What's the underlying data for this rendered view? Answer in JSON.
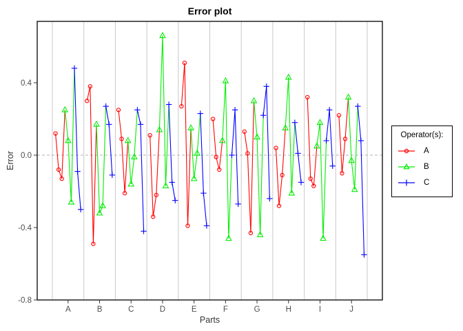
{
  "chart_data": {
    "type": "line",
    "title": "Error plot",
    "xlabel": "Parts",
    "ylabel": "Error",
    "y_ticks": [
      "0.4",
      "0.0",
      "-0.4",
      "-0.8"
    ],
    "y_tick_values": [
      0.4,
      0.0,
      -0.4,
      -0.8
    ],
    "ylim": [
      -0.8,
      0.74
    ],
    "zero_line": 0.0,
    "grid": "vertical-part-separators",
    "parts": [
      "A",
      "B",
      "C",
      "D",
      "E",
      "F",
      "G",
      "H",
      "I",
      "J"
    ],
    "trials_per_operator": 3,
    "operators": [
      {
        "name": "A",
        "color": "#ff0000",
        "marker": "circle"
      },
      {
        "name": "B",
        "color": "#00ee00",
        "marker": "triangle"
      },
      {
        "name": "C",
        "color": "#0000ff",
        "marker": "plus"
      }
    ],
    "errors_by_part": [
      {
        "part": "A",
        "A": [
          0.12,
          -0.08,
          -0.13
        ],
        "B": [
          0.25,
          0.08,
          -0.26
        ],
        "C": [
          0.48,
          -0.09,
          -0.3
        ]
      },
      {
        "part": "B",
        "A": [
          0.3,
          0.38,
          -0.49
        ],
        "B": [
          0.17,
          -0.32,
          -0.28
        ],
        "C": [
          0.27,
          0.17,
          -0.11
        ]
      },
      {
        "part": "C",
        "A": [
          0.25,
          0.09,
          -0.21
        ],
        "B": [
          0.08,
          -0.16,
          -0.01
        ],
        "C": [
          0.25,
          0.17,
          -0.42
        ]
      },
      {
        "part": "D",
        "A": [
          0.11,
          -0.34,
          -0.22
        ],
        "B": [
          0.14,
          0.66,
          -0.17
        ],
        "C": [
          0.28,
          -0.15,
          -0.25
        ]
      },
      {
        "part": "E",
        "A": [
          0.27,
          0.51,
          -0.39
        ],
        "B": [
          0.15,
          -0.13,
          0.01
        ],
        "C": [
          0.23,
          -0.21,
          -0.39
        ]
      },
      {
        "part": "F",
        "A": [
          0.2,
          -0.01,
          -0.08
        ],
        "B": [
          0.08,
          0.41,
          -0.46
        ],
        "C": [
          0.0,
          0.25,
          -0.27
        ]
      },
      {
        "part": "G",
        "A": [
          0.13,
          0.01,
          -0.43
        ],
        "B": [
          0.3,
          0.1,
          -0.44
        ],
        "C": [
          0.22,
          0.38,
          -0.24
        ]
      },
      {
        "part": "H",
        "A": [
          0.04,
          -0.28,
          -0.11
        ],
        "B": [
          0.15,
          0.43,
          -0.21
        ],
        "C": [
          0.18,
          0.01,
          -0.15
        ]
      },
      {
        "part": "I",
        "A": [
          0.32,
          -0.13,
          -0.17
        ],
        "B": [
          0.05,
          0.18,
          -0.46
        ],
        "C": [
          0.08,
          0.25,
          -0.06
        ]
      },
      {
        "part": "J",
        "A": [
          0.22,
          -0.1,
          0.09
        ],
        "B": [
          0.32,
          -0.03,
          -0.19
        ],
        "C": [
          0.27,
          0.08,
          -0.55
        ]
      }
    ],
    "legend": {
      "title": "Operator(s):",
      "entries": [
        {
          "label": "A"
        },
        {
          "label": "B"
        },
        {
          "label": "C"
        }
      ],
      "position": "right-outside"
    },
    "colors": {
      "grid_line": "#c8c8c8",
      "zero_line": "#b3b3b3",
      "panel_border": "#000000",
      "tick_label": "#4d4d4d"
    }
  }
}
